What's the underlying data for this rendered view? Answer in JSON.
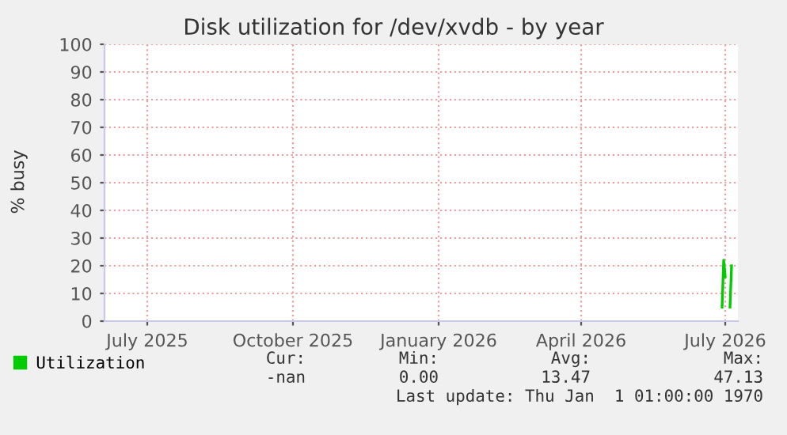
{
  "chart_data": {
    "type": "line",
    "title": "Disk utilization for /dev/xvdb - by year",
    "ylabel": "% busy",
    "x": [
      "2026-07-14",
      "2026-07-15",
      "2026-07-16",
      "2026-07-18",
      "2026-07-19",
      "2026-07-20"
    ],
    "series": [
      {
        "name": "Utilization",
        "color": "#00cc00",
        "values": [
          5,
          22,
          16,
          null,
          5,
          20
        ]
      }
    ],
    "xlim": [
      "2025-06-19",
      "2026-07-24"
    ],
    "xticks": [
      {
        "value": "2025-07-16",
        "label": "July 2025"
      },
      {
        "value": "2025-10-16",
        "label": "October 2025"
      },
      {
        "value": "2026-01-16",
        "label": "January 2026"
      },
      {
        "value": "2026-04-16",
        "label": "April 2026"
      },
      {
        "value": "2026-07-16",
        "label": "July 2026"
      }
    ],
    "ylim": [
      0,
      100
    ],
    "yticks": [
      0,
      10,
      20,
      30,
      40,
      50,
      60,
      70,
      80,
      90,
      100
    ],
    "grid": true,
    "legend": "bottom",
    "annotations": [
      "Cur:",
      "Min:",
      "Avg:",
      "Max:",
      "-nan",
      "0.00",
      "13.47",
      "47.13",
      "Last update: Thu Jan  1 01:00:00 1970"
    ]
  }
}
